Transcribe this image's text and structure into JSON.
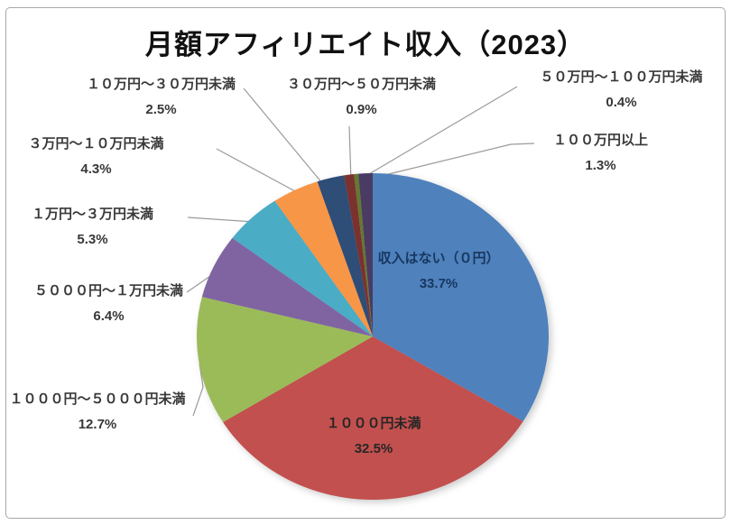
{
  "frame": {
    "background": "#ffffff",
    "border_color": "#a8a8a8"
  },
  "chart_data": {
    "type": "pie",
    "title": "月額アフィリエイト収入（2023）",
    "start_angle_deg": 0,
    "direction": "clockwise",
    "legend": "none",
    "label_style": "category name + percentage, small slices use leader lines",
    "slices": [
      {
        "label": "収入はない（０円）",
        "percent": "33.7%",
        "value": 33.7,
        "color": "#4F81BD",
        "label_position": "inside"
      },
      {
        "label": "１０００円未満",
        "percent": "32.5%",
        "value": 32.5,
        "color": "#C2504E",
        "label_position": "inside"
      },
      {
        "label": "１０００円～５０００円未満",
        "percent": "12.7%",
        "value": 12.7,
        "color": "#9BBB59",
        "label_position": "outside-left"
      },
      {
        "label": "５０００円～１万円未満",
        "percent": "6.4%",
        "value": 6.4,
        "color": "#8064A2",
        "label_position": "outside-left"
      },
      {
        "label": "１万円～３万円未満",
        "percent": "5.3%",
        "value": 5.3,
        "color": "#4BACC6",
        "label_position": "outside-left"
      },
      {
        "label": "３万円～１０万円未満",
        "percent": "4.3%",
        "value": 4.3,
        "color": "#F79646",
        "label_position": "outside-left"
      },
      {
        "label": "１０万円～３０万円未満",
        "percent": "2.5%",
        "value": 2.5,
        "color": "#2E4D77",
        "label_position": "outside-top-left"
      },
      {
        "label": "３０万円～５０万円未満",
        "percent": "0.9%",
        "value": 0.9,
        "color": "#7B312E",
        "label_position": "outside-top"
      },
      {
        "label": "５０万円～１００万円未満",
        "percent": "0.4%",
        "value": 0.4,
        "color": "#64782F",
        "label_position": "outside-top-right"
      },
      {
        "label": "１００万円以上",
        "percent": "1.3%",
        "value": 1.3,
        "color": "#4A3B63",
        "label_position": "outside-right"
      }
    ]
  }
}
